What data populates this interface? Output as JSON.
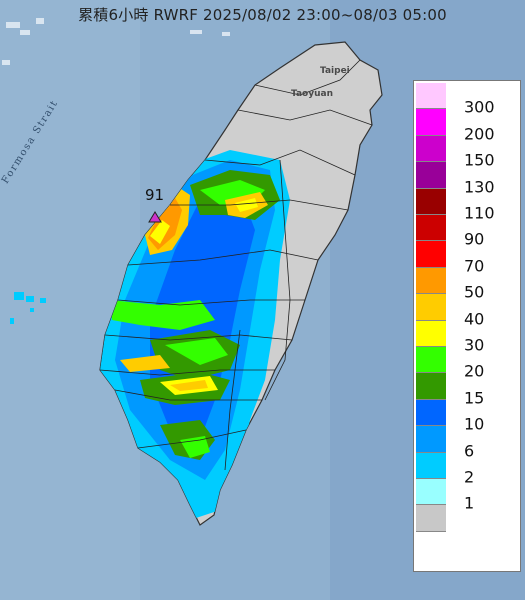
{
  "title": "累積6小時 RWRF 2025/08/02 23:00~08/03 05:00",
  "places": {
    "taipei": "Taipei",
    "taoyuan": "Taoyuan"
  },
  "strait_label": "Formosa Strait",
  "max_value": "91",
  "legend": [
    {
      "label": "300",
      "color": "#ffc8ff"
    },
    {
      "label": "200",
      "color": "#ff00ff"
    },
    {
      "label": "150",
      "color": "#cc00cc"
    },
    {
      "label": "130",
      "color": "#990099"
    },
    {
      "label": "110",
      "color": "#990000"
    },
    {
      "label": "90",
      "color": "#cc0000"
    },
    {
      "label": "70",
      "color": "#ff0000"
    },
    {
      "label": "50",
      "color": "#ff9900"
    },
    {
      "label": "40",
      "color": "#ffcc00"
    },
    {
      "label": "30",
      "color": "#ffff00"
    },
    {
      "label": "20",
      "color": "#33ff00"
    },
    {
      "label": "15",
      "color": "#339900"
    },
    {
      "label": "10",
      "color": "#0066ff"
    },
    {
      "label": "6",
      "color": "#0099ff"
    },
    {
      "label": "2",
      "color": "#00ccff"
    },
    {
      "label": "1",
      "color": "#99ffff"
    },
    {
      "label": "",
      "color": "#c8c8c8"
    }
  ]
}
